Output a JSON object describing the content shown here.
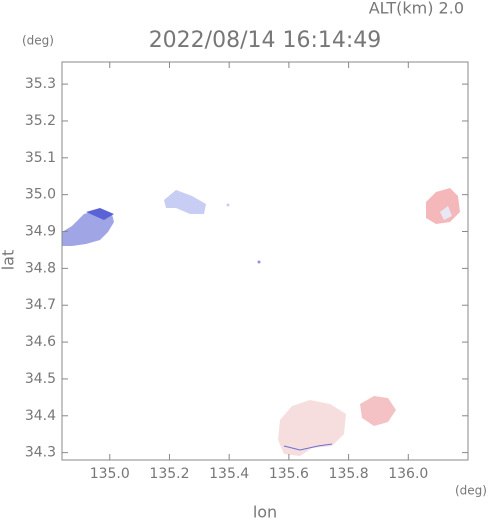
{
  "chart_data": {
    "type": "map",
    "title": "2022/08/14 16:14:49",
    "subtitle": "ALT(km) 2.0",
    "x_label": "lon",
    "y_label": "lat",
    "x_unit": "(deg)",
    "y_unit": "(deg)",
    "xlim": [
      134.84,
      136.2
    ],
    "ylim": [
      34.28,
      35.36
    ],
    "xticks": [
      {
        "value": 135,
        "label": "135.0"
      },
      135.2,
      135.4,
      135.6,
      135.8,
      {
        "value": 136,
        "label": "136.0"
      }
    ],
    "yticks": [
      34.3,
      34.4,
      34.5,
      34.6,
      34.7,
      34.8,
      34.9,
      {
        "value": 35,
        "label": "35.0"
      },
      35.1,
      35.2,
      35.3
    ]
  }
}
